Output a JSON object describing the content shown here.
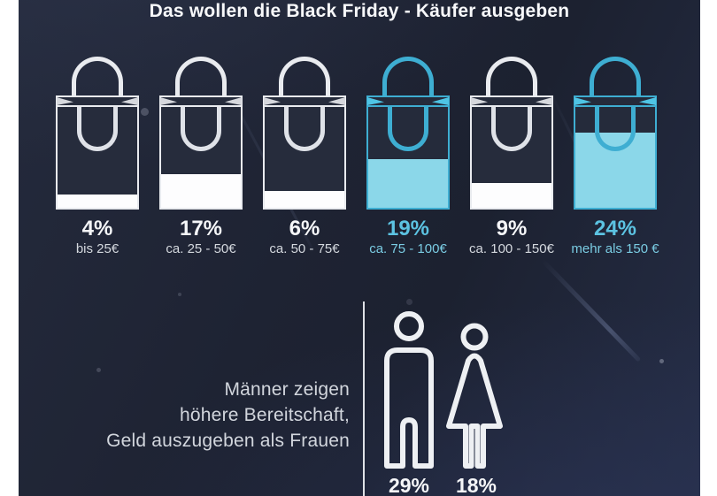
{
  "title": "Das wollen die Black Friday - Käufer ausgeben",
  "colors": {
    "background": "#1e2333",
    "accent_cyan": "#3eaed2",
    "accent_cyan_light": "#8bd7e9",
    "white": "#f5f6f8"
  },
  "chart_data": [
    {
      "type": "bar",
      "subtype": "pictogram-shopping-bags",
      "title": "Das wollen die Black Friday - Käufer ausgeben",
      "categories": [
        "bis 25€",
        "ca. 25 - 50€",
        "ca. 50 - 75€",
        "ca. 75 - 100€",
        "ca. 100 - 150€",
        "mehr als 150 €"
      ],
      "values": [
        4,
        17,
        6,
        19,
        9,
        24
      ],
      "unit": "%",
      "highlighted_categories": [
        "ca. 75 - 100€",
        "mehr als 150 €"
      ],
      "highlight_color": "#3eaed2",
      "bag_fill_levels_pct_of_bag": [
        13,
        33,
        17,
        48,
        25,
        75
      ]
    },
    {
      "type": "bar",
      "subtype": "pictogram-gender",
      "categories": [
        "Männer",
        "Frauen"
      ],
      "values": [
        29,
        18
      ],
      "unit": "%",
      "annotation": "Männer zeigen höhere Bereitschaft, Geld auszugeben als Frauen"
    }
  ],
  "bags": [
    {
      "percent_label": "4%",
      "range_label": "bis 25€",
      "value": 4,
      "fill_level_pct": 13,
      "highlighted": false
    },
    {
      "percent_label": "17%",
      "range_label": "ca. 25 - 50€",
      "value": 17,
      "fill_level_pct": 33,
      "highlighted": false
    },
    {
      "percent_label": "6%",
      "range_label": "ca. 50 - 75€",
      "value": 6,
      "fill_level_pct": 17,
      "highlighted": false
    },
    {
      "percent_label": "19%",
      "range_label": "ca. 75 - 100€",
      "value": 19,
      "fill_level_pct": 48,
      "highlighted": true
    },
    {
      "percent_label": "9%",
      "range_label": "ca. 100 - 150€",
      "value": 9,
      "fill_level_pct": 25,
      "highlighted": false
    },
    {
      "percent_label": "24%",
      "range_label": "mehr als 150 €",
      "value": 24,
      "fill_level_pct": 75,
      "highlighted": true
    }
  ],
  "gender": {
    "note_line1": "Männer zeigen",
    "note_line2": "höhere Bereitschaft,",
    "note_line3": "Geld auszugeben als Frauen",
    "male_percent": "29%",
    "female_percent": "18%"
  }
}
